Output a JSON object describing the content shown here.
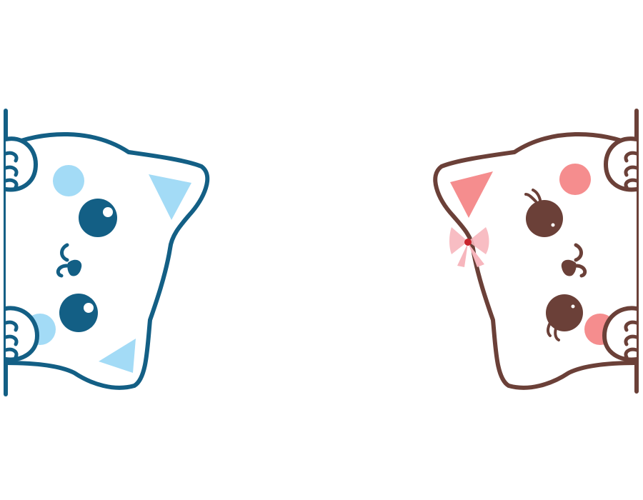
{
  "scene": {
    "background_color": "#ffffff",
    "blue_cat": {
      "outline_color": "#135f85",
      "accent_color": "#a3dbf6",
      "eye_color": "#135f85",
      "highlight_color": "#ffffff",
      "fill_color": "#ffffff",
      "icon": "blue-cat-peeking-icon"
    },
    "pink_cat": {
      "outline_color": "#6b4038",
      "ear_color": "#f58d8e",
      "cheek_color": "#f58d8e",
      "eye_color": "#6b4038",
      "bow_color": "#f7b6bd",
      "bow_knot_color": "#c8242c",
      "fill_color": "#ffffff",
      "icon": "pink-cat-peeking-icon"
    }
  }
}
